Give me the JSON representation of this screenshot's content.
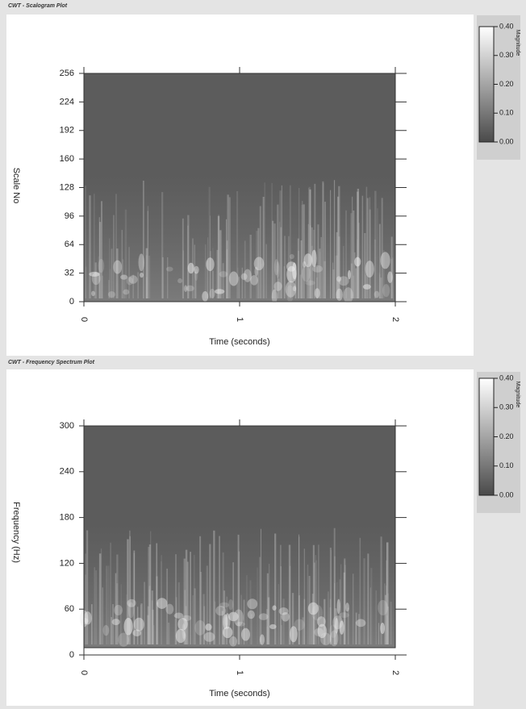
{
  "chart_data": [
    {
      "type": "heatmap",
      "title": "CWT - Scalogram Plot",
      "xlabel": "Time (seconds)",
      "ylabel": "Scale No",
      "xlim": [
        0,
        2
      ],
      "xticks": [
        0,
        1,
        2
      ],
      "ylim": [
        0,
        256
      ],
      "yticks": [
        0,
        32,
        64,
        96,
        128,
        160,
        192,
        224,
        256
      ],
      "colorbar": {
        "label": "Magnitude",
        "lim": [
          0,
          0.4
        ],
        "ticks": [
          {
            "value": 0,
            "label": "0.00"
          },
          {
            "value": 0.1,
            "label": "0.10"
          },
          {
            "value": 0.2,
            "label": "0.20"
          },
          {
            "value": 0.3,
            "label": "0.30"
          },
          {
            "value": 0.4,
            "label": "0.40"
          }
        ]
      }
    },
    {
      "type": "heatmap",
      "title": "CWT - Frequency Spectrum Plot",
      "xlabel": "Time (seconds)",
      "ylabel": "Frequency (Hz)",
      "xlim": [
        0,
        2
      ],
      "xticks": [
        0,
        1,
        2
      ],
      "ylim": [
        0,
        300
      ],
      "yticks": [
        0,
        60,
        120,
        180,
        240,
        300
      ],
      "colorbar": {
        "label": "Magnitude",
        "lim": [
          0,
          0.4
        ],
        "ticks": [
          {
            "value": 0,
            "label": "0.00"
          },
          {
            "value": 0.1,
            "label": "0.10"
          },
          {
            "value": 0.2,
            "label": "0.20"
          },
          {
            "value": 0.3,
            "label": "0.30"
          },
          {
            "value": 0.4,
            "label": "0.40"
          }
        ]
      }
    }
  ]
}
